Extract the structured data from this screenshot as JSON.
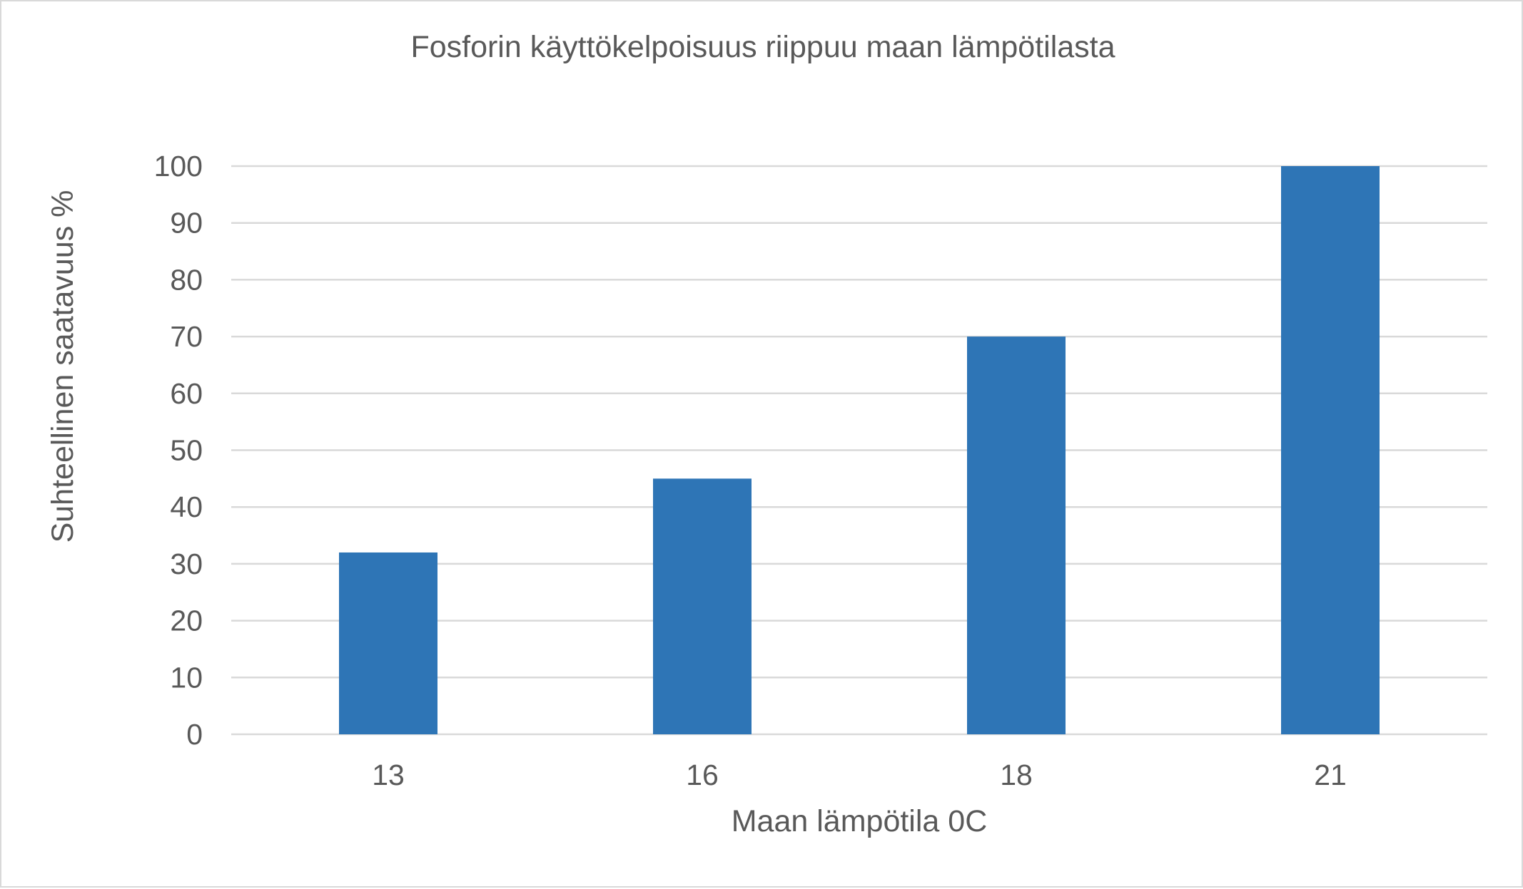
{
  "chart_data": {
    "type": "bar",
    "title": "Fosforin käyttökelpoisuus riippuu maan lämpötilasta",
    "xlabel": "Maan lämpötila 0C",
    "ylabel": "Suhteellinen saatavuus %",
    "categories": [
      "13",
      "16",
      "18",
      "21"
    ],
    "values": [
      32,
      45,
      70,
      100
    ],
    "ylim": [
      0,
      100
    ],
    "yticks": [
      0,
      10,
      20,
      30,
      40,
      50,
      60,
      70,
      80,
      90,
      100
    ],
    "grid": true,
    "legend": "none",
    "colors": {
      "bar": "#2e75b6",
      "gridline": "#d9d9d9",
      "text": "#595959",
      "border": "#d9d9d9"
    }
  }
}
